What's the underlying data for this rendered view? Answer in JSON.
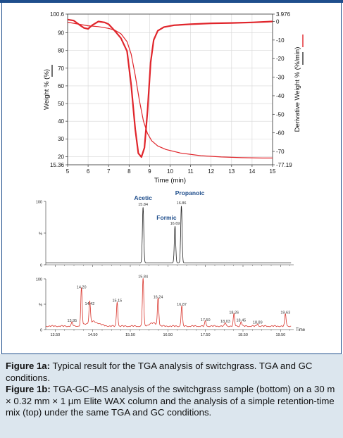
{
  "colors": {
    "accent": "#1f4e8c",
    "tga_curve": "#e0252b",
    "gcms_top": "#222222",
    "gcms_bottom": "#d9342b",
    "caption_bg": "#dce6ee"
  },
  "chart_data": [
    {
      "type": "line",
      "xlabel": "Time (min)",
      "ylabel": "Weight % (%)",
      "y2label": "Derivative Weight % (%/min)",
      "xlim": [
        5,
        15
      ],
      "ylim": [
        15.36,
        100.6
      ],
      "y2lim": [
        -77.19,
        3.976
      ],
      "x_ticks": [
        "5",
        "6",
        "7",
        "8",
        "9",
        "10",
        "11",
        "12",
        "13",
        "14",
        "15"
      ],
      "y_ticks": [
        "100.6",
        "90",
        "80",
        "70",
        "60",
        "50",
        "40",
        "30",
        "20",
        "15.36"
      ],
      "y2_ticks": [
        "3.976",
        "0",
        "-10",
        "-20",
        "-30",
        "-40",
        "-50",
        "-60",
        "-70",
        "-77.19"
      ],
      "series": [
        {
          "axis": "left",
          "x": [
            5.0,
            5.5,
            6.0,
            6.5,
            7.0,
            7.3,
            7.6,
            7.9,
            8.1,
            8.3,
            8.5,
            8.7,
            8.9,
            9.1,
            9.4,
            9.8,
            10.5,
            11.5,
            12.5,
            13.5,
            14.5,
            15.0
          ],
          "y": [
            96,
            95,
            94,
            93.5,
            92.5,
            91.5,
            89.5,
            85,
            78,
            66,
            52,
            40,
            33,
            29,
            26,
            24,
            22,
            20.5,
            19.8,
            19.4,
            19.2,
            19.2
          ]
        },
        {
          "axis": "right",
          "x": [
            5.0,
            5.3,
            5.6,
            5.8,
            6.0,
            6.2,
            6.5,
            6.8,
            7.0,
            7.3,
            7.6,
            7.9,
            8.1,
            8.3,
            8.45,
            8.6,
            8.75,
            8.9,
            9.05,
            9.2,
            9.4,
            9.7,
            10.2,
            11.0,
            12.0,
            13.0,
            14.0,
            15.0
          ],
          "y": [
            1,
            0.5,
            -2,
            -3.5,
            -4,
            -2,
            0,
            -0.5,
            -1.5,
            -5,
            -9,
            -16,
            -34,
            -58,
            -71,
            -73,
            -68,
            -48,
            -22,
            -10,
            -5,
            -3,
            -2,
            -1.5,
            -1,
            -0.8,
            -0.5,
            0
          ]
        }
      ]
    },
    {
      "type": "line",
      "xlabel": "",
      "xlim": [
        13.25,
        19.85
      ],
      "x_ticks": [
        "13.50",
        "14.50",
        "15.50",
        "16.50",
        "17.50",
        "18.50",
        "19.50"
      ],
      "panels": [
        {
          "y_ticks": [
            "100",
            "%",
            "0"
          ],
          "peaks": [
            {
              "t": 15.84,
              "h": 88,
              "label": "15.84"
            },
            {
              "t": 16.69,
              "h": 58,
              "label": "16.69"
            },
            {
              "t": 16.86,
              "h": 90,
              "label": "16.86"
            }
          ],
          "annotations": [
            {
              "text": "Acetic",
              "t": 15.84
            },
            {
              "text": "Formic",
              "t": 16.69
            },
            {
              "text": "Propanoic",
              "t": 16.86
            }
          ]
        },
        {
          "y_ticks": [
            "100",
            "%",
            "0"
          ],
          "axis_label": "Time",
          "peaks": [
            {
              "t": 13.95,
              "h": 8,
              "label": "13.95"
            },
            {
              "t": 14.2,
              "h": 74,
              "label": "14.20"
            },
            {
              "t": 14.42,
              "h": 42,
              "label": "14.42"
            },
            {
              "t": 15.15,
              "h": 48,
              "label": "15.15"
            },
            {
              "t": 15.84,
              "h": 95,
              "label": "15.84"
            },
            {
              "t": 16.24,
              "h": 55,
              "label": "16.24"
            },
            {
              "t": 16.87,
              "h": 40,
              "label": "16.87"
            },
            {
              "t": 17.5,
              "h": 10,
              "label": "17.50"
            },
            {
              "t": 18.03,
              "h": 7,
              "label": "18.03"
            },
            {
              "t": 18.26,
              "h": 24,
              "label": "18.26"
            },
            {
              "t": 18.45,
              "h": 9,
              "label": "18.45"
            },
            {
              "t": 18.89,
              "h": 5,
              "label": "18.89"
            },
            {
              "t": 19.63,
              "h": 24,
              "label": "19.63"
            }
          ]
        }
      ]
    }
  ],
  "caption": {
    "fig1a_label": "Figure 1a:",
    "fig1a_text": " Typical result for the TGA analysis of switchgrass. TGA and GC conditions.",
    "fig1b_label": "Figure 1b:",
    "fig1b_text": " TGA-GC–MS analysis of the switchgrass sample (bottom) on a 30 m × 0.32 mm × 1 µm Elite WAX column and the analysis of a simple retention-time mix (top) under the same TGA and GC conditions."
  }
}
